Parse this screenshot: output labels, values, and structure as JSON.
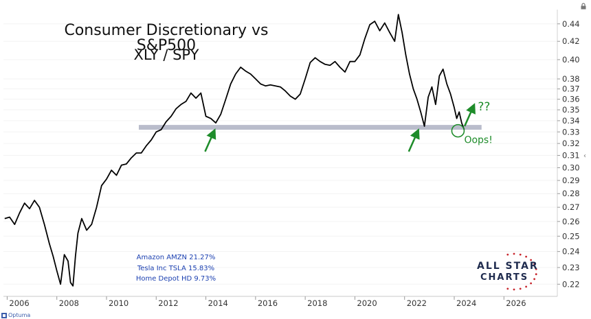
{
  "chart_data": {
    "type": "line",
    "title": "Consumer Discretionary vs S&P500",
    "subtitle": "XLY / SPY",
    "xlabel": "",
    "ylabel": "",
    "x_ticks": [
      "2006",
      "2008",
      "2010",
      "2012",
      "2014",
      "2016",
      "2018",
      "2020",
      "2022",
      "2024",
      "2026"
    ],
    "y_ticks": [
      "0.44",
      "0.42",
      "0.40",
      "0.38",
      "0.37",
      "0.36",
      "0.35",
      "0.34",
      "0.33",
      "0.32",
      "0.31",
      "0.30",
      "0.29",
      "0.28",
      "0.27",
      "0.26",
      "0.25",
      "0.24",
      "0.23",
      "0.22"
    ],
    "y_scale": "log",
    "xlim": [
      2005.85,
      2028.15
    ],
    "ylim": [
      0.213,
      0.457
    ],
    "series": [
      {
        "color": "#000000",
        "x": [
          2005.9,
          2006.1,
          2006.3,
          2006.5,
          2006.7,
          2006.9,
          2007.1,
          2007.3,
          2007.5,
          2007.7,
          2007.85,
          2008.0,
          2008.15,
          2008.3,
          2008.45,
          2008.55,
          2008.65,
          2008.75,
          2008.85,
          2009.0,
          2009.2,
          2009.4,
          2009.6,
          2009.8,
          2010.0,
          2010.2,
          2010.4,
          2010.6,
          2010.8,
          2011.0,
          2011.2,
          2011.4,
          2011.6,
          2011.8,
          2012.0,
          2012.2,
          2012.4,
          2012.6,
          2012.8,
          2013.0,
          2013.2,
          2013.4,
          2013.6,
          2013.8,
          2014.0,
          2014.2,
          2014.4,
          2014.6,
          2014.8,
          2015.0,
          2015.2,
          2015.4,
          2015.6,
          2015.8,
          2016.0,
          2016.2,
          2016.4,
          2016.6,
          2016.8,
          2017.0,
          2017.2,
          2017.4,
          2017.6,
          2017.8,
          2018.0,
          2018.2,
          2018.4,
          2018.6,
          2018.8,
          2019.0,
          2019.2,
          2019.4,
          2019.6,
          2019.8,
          2020.0,
          2020.2,
          2020.4,
          2020.6,
          2020.8,
          2021.0,
          2021.2,
          2021.4,
          2021.6,
          2021.75,
          2021.9,
          2022.05,
          2022.2,
          2022.35,
          2022.5,
          2022.65,
          2022.8,
          2022.95,
          2023.1,
          2023.25,
          2023.4,
          2023.55,
          2023.7,
          2023.85,
          2024.0,
          2024.1,
          2024.2,
          2024.3,
          2024.4
        ],
        "y": [
          0.262,
          0.263,
          0.258,
          0.266,
          0.273,
          0.269,
          0.275,
          0.27,
          0.258,
          0.245,
          0.237,
          0.228,
          0.22,
          0.238,
          0.234,
          0.221,
          0.219,
          0.237,
          0.252,
          0.262,
          0.254,
          0.258,
          0.27,
          0.286,
          0.291,
          0.298,
          0.294,
          0.302,
          0.303,
          0.308,
          0.312,
          0.312,
          0.318,
          0.323,
          0.33,
          0.332,
          0.339,
          0.344,
          0.351,
          0.355,
          0.358,
          0.366,
          0.361,
          0.366,
          0.344,
          0.342,
          0.338,
          0.346,
          0.36,
          0.375,
          0.385,
          0.392,
          0.388,
          0.385,
          0.38,
          0.375,
          0.373,
          0.374,
          0.373,
          0.372,
          0.368,
          0.363,
          0.36,
          0.365,
          0.38,
          0.397,
          0.402,
          0.398,
          0.395,
          0.394,
          0.398,
          0.392,
          0.387,
          0.398,
          0.398,
          0.405,
          0.423,
          0.439,
          0.443,
          0.432,
          0.441,
          0.43,
          0.42,
          0.451,
          0.43,
          0.405,
          0.385,
          0.37,
          0.36,
          0.348,
          0.335,
          0.362,
          0.372,
          0.355,
          0.383,
          0.39,
          0.375,
          0.365,
          0.352,
          0.342,
          0.348,
          0.338,
          0.332
        ]
      }
    ],
    "support_level": 0.334,
    "annotations": [
      "??",
      "Oops!"
    ],
    "arrows": [
      {
        "x": 2014.3,
        "y": 0.329
      },
      {
        "x": 2022.5,
        "y": 0.329
      },
      {
        "x": 2024.75,
        "y": 0.352
      }
    ],
    "circle_marker": {
      "x": 2024.15,
      "y": 0.331
    }
  },
  "holdings": [
    {
      "name": "Amazon",
      "ticker": "AMZN",
      "weight": "21.27%",
      "text": "Amazon    AMZN   21.27%"
    },
    {
      "name": "Tesla Inc",
      "ticker": "TSLA",
      "weight": "15.83%",
      "text": "Tesla Inc    TSLA   15.83%"
    },
    {
      "name": "Home Depot",
      "ticker": "HD",
      "weight": "9.73%",
      "text": "Home Depot    HD   9.73%"
    }
  ],
  "logo": {
    "line1": "ALL STAR",
    "line2": "CHARTS"
  },
  "footer": {
    "brand": "Optuma"
  },
  "colors": {
    "line": "#000000",
    "support": "#b9bccb",
    "annotation": "#1e8c2a",
    "holdings_text": "#1a3fb0",
    "logo_text": "#1f2b4e",
    "logo_stars": "#c8262d"
  },
  "icons": {
    "lock": "lock-icon",
    "scroll": "chevron-left-icon"
  }
}
